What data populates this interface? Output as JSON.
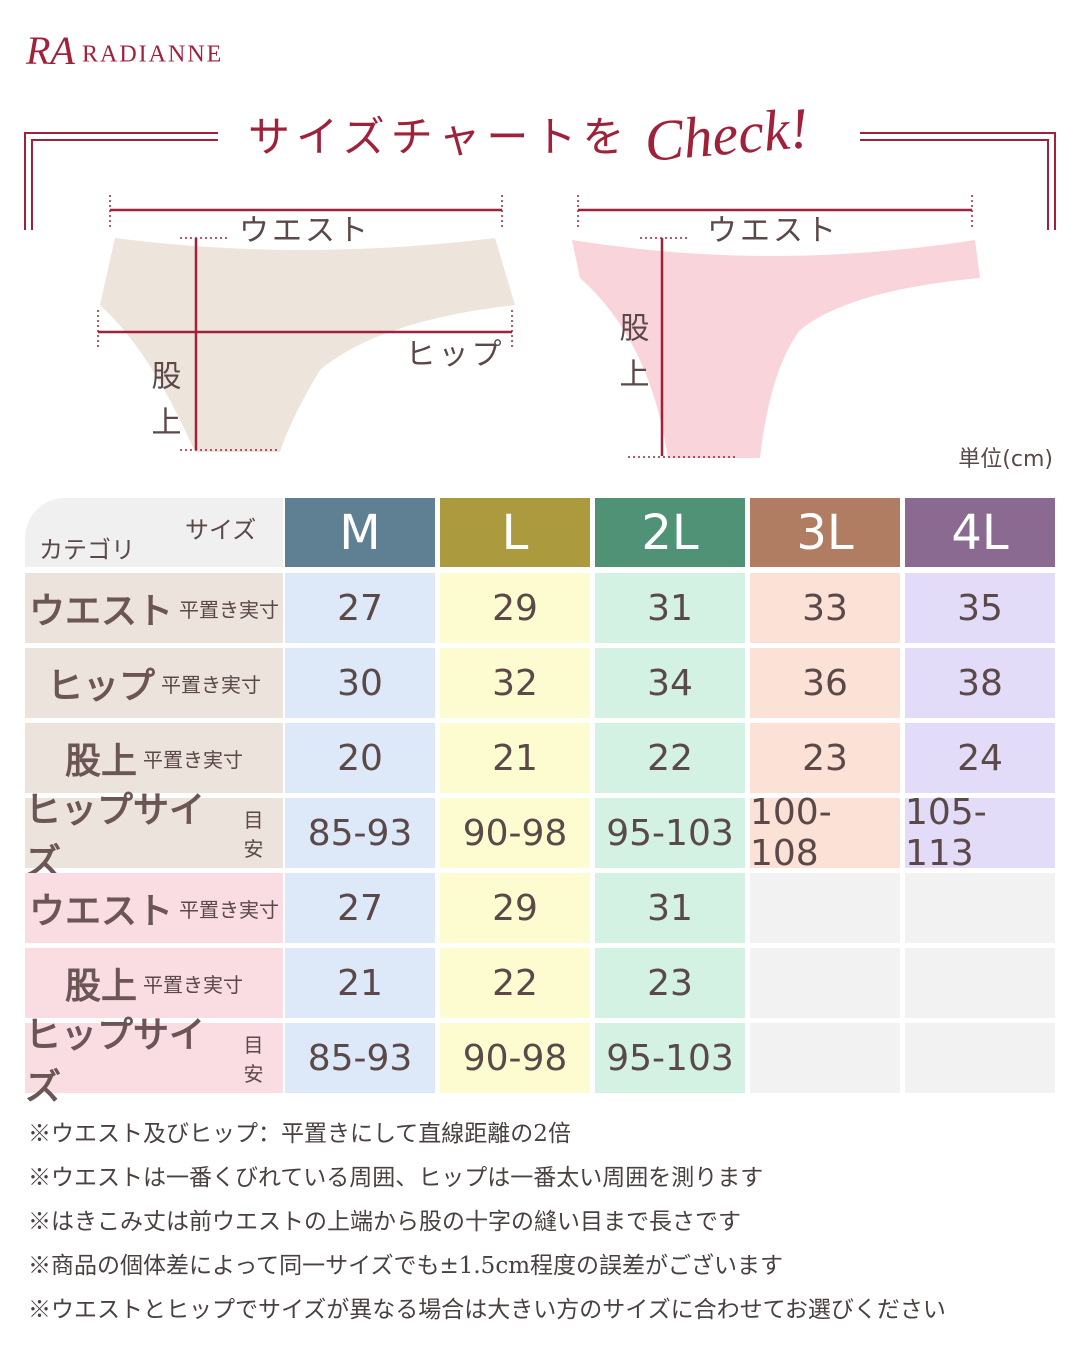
{
  "brand": {
    "mark": "RA",
    "name": "RADIANNE"
  },
  "header": {
    "title": "サイズチャートを",
    "title_script": "Check!"
  },
  "diagrams": {
    "left": {
      "waist": "ウエスト",
      "hip": "ヒップ",
      "rise_top": "股",
      "rise_bottom": "上"
    },
    "right": {
      "waist": "ウエスト",
      "rise_top": "股",
      "rise_bottom": "上"
    }
  },
  "unit": "単位(cm)",
  "table": {
    "corner_size": "サイズ",
    "corner_category": "カテゴリ",
    "columns": [
      "M",
      "L",
      "2L",
      "3L",
      "4L"
    ],
    "rows": [
      {
        "label": "ウエスト",
        "note": "平置き実寸",
        "values": [
          27,
          29,
          31,
          33,
          35
        ]
      },
      {
        "label": "ヒップ",
        "note": "平置き実寸",
        "values": [
          30,
          32,
          34,
          36,
          38
        ]
      },
      {
        "label": "股上",
        "note": "平置き実寸",
        "values": [
          20,
          21,
          22,
          23,
          24
        ]
      },
      {
        "label": "ヒップサイズ",
        "note": "目安",
        "values": [
          "85-93",
          "90-98",
          "95-103",
          "100-108",
          "105-113"
        ]
      },
      {
        "label": "ウエスト",
        "note": "平置き実寸",
        "values": [
          27,
          29,
          31
        ]
      },
      {
        "label": "股上",
        "note": "平置き実寸",
        "values": [
          21,
          22,
          23
        ]
      },
      {
        "label": "ヒップサイズ",
        "note": "目安",
        "values": [
          "85-93",
          "90-98",
          "95-103"
        ]
      }
    ]
  },
  "notes": [
    "※ウエスト及びヒップ：平置きにして直線距離の2倍",
    "※ウエストは一番くびれている周囲、ヒップは一番太い周囲を測ります",
    "※はきこみ丈は前ウエストの上端から股の十字の縫い目まで長さです",
    "※商品の個体差によって同一サイズでも±1.5cm程度の誤差がございます",
    "※ウエストとヒップでサイズが異なる場合は大きい方のサイズに合わせてお選びください"
  ]
}
